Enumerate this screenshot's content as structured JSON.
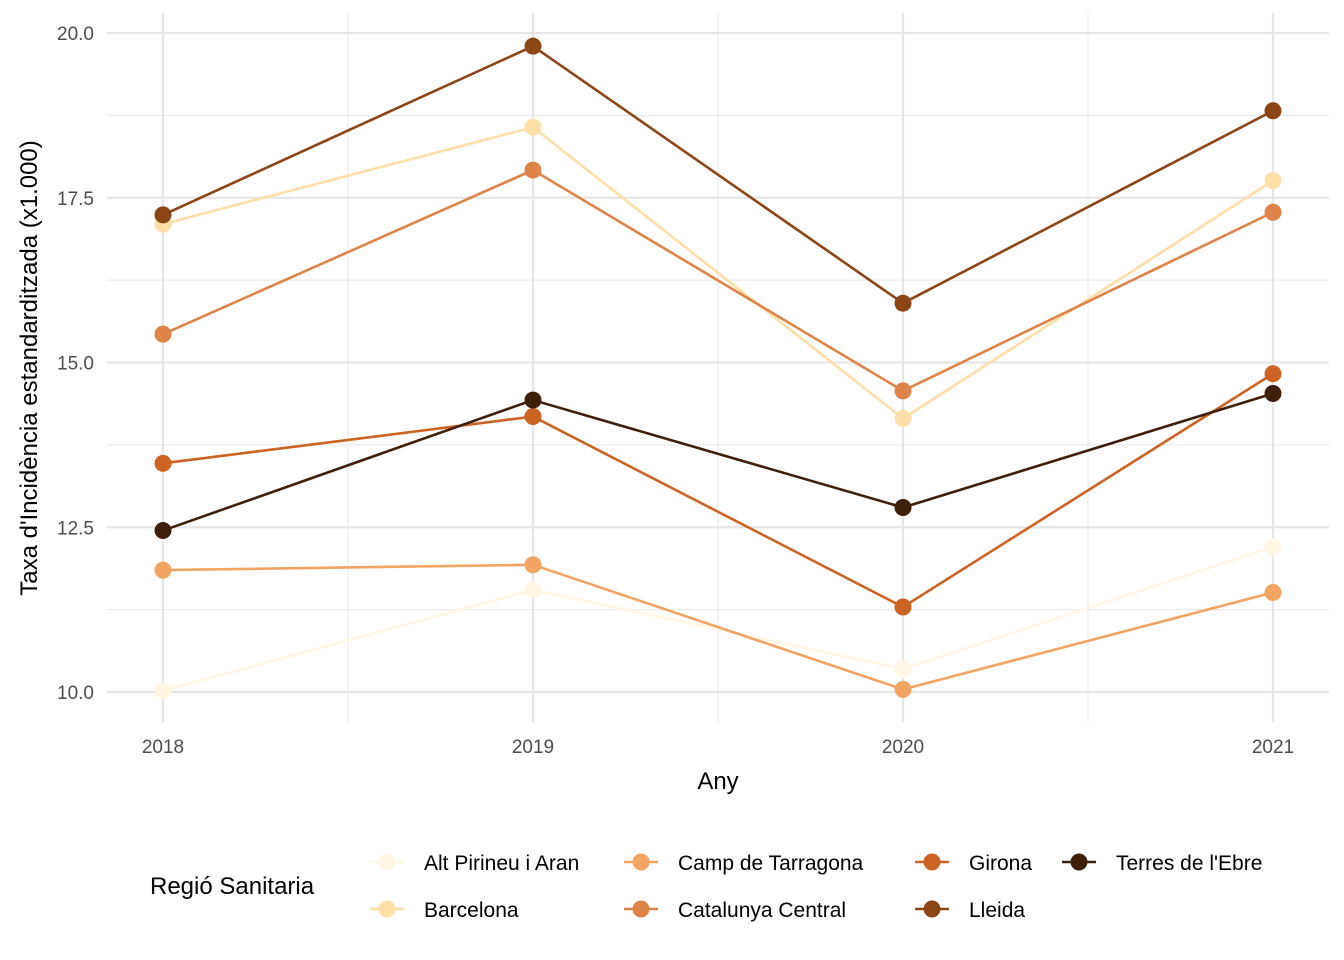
{
  "chart_data": {
    "type": "line",
    "title": "",
    "xlabel": "Any",
    "ylabel": "Taxa d'Incidència estandarditzada (x1.000)",
    "x": [
      2018,
      2019,
      2020,
      2021
    ],
    "x_tick_labels": [
      "2018",
      "2019",
      "2020",
      "2021"
    ],
    "y_ticks": [
      10.0,
      12.5,
      15.0,
      17.5,
      20.0
    ],
    "y_tick_labels": [
      "10.0",
      "12.5",
      "15.0",
      "17.5",
      "20.0"
    ],
    "ylim": [
      9.5,
      20.3
    ],
    "grid": true,
    "legend_title": "Regió Sanitaria",
    "legend_position": "bottom",
    "series": [
      {
        "name": "Alt Pirineu i Aran",
        "color": "#FFF7E3",
        "values": [
          10.02,
          11.55,
          10.35,
          12.2
        ]
      },
      {
        "name": "Barcelona",
        "color": "#FEDFA8",
        "values": [
          17.1,
          18.57,
          14.15,
          17.76
        ]
      },
      {
        "name": "Camp de Tarragona",
        "color": "#F2A463",
        "values": [
          11.85,
          11.93,
          10.04,
          11.51
        ]
      },
      {
        "name": "Catalunya Central",
        "color": "#DE8448",
        "values": [
          15.43,
          17.92,
          14.57,
          17.28
        ]
      },
      {
        "name": "Girona",
        "color": "#CB6322",
        "values": [
          13.47,
          14.18,
          11.29,
          14.83
        ]
      },
      {
        "name": "Lleida",
        "color": "#8C4515",
        "values": [
          17.24,
          19.8,
          15.9,
          18.82
        ]
      },
      {
        "name": "Terres de l'Ebre",
        "color": "#3E200A",
        "values": [
          12.45,
          14.43,
          12.8,
          14.53
        ]
      }
    ]
  }
}
